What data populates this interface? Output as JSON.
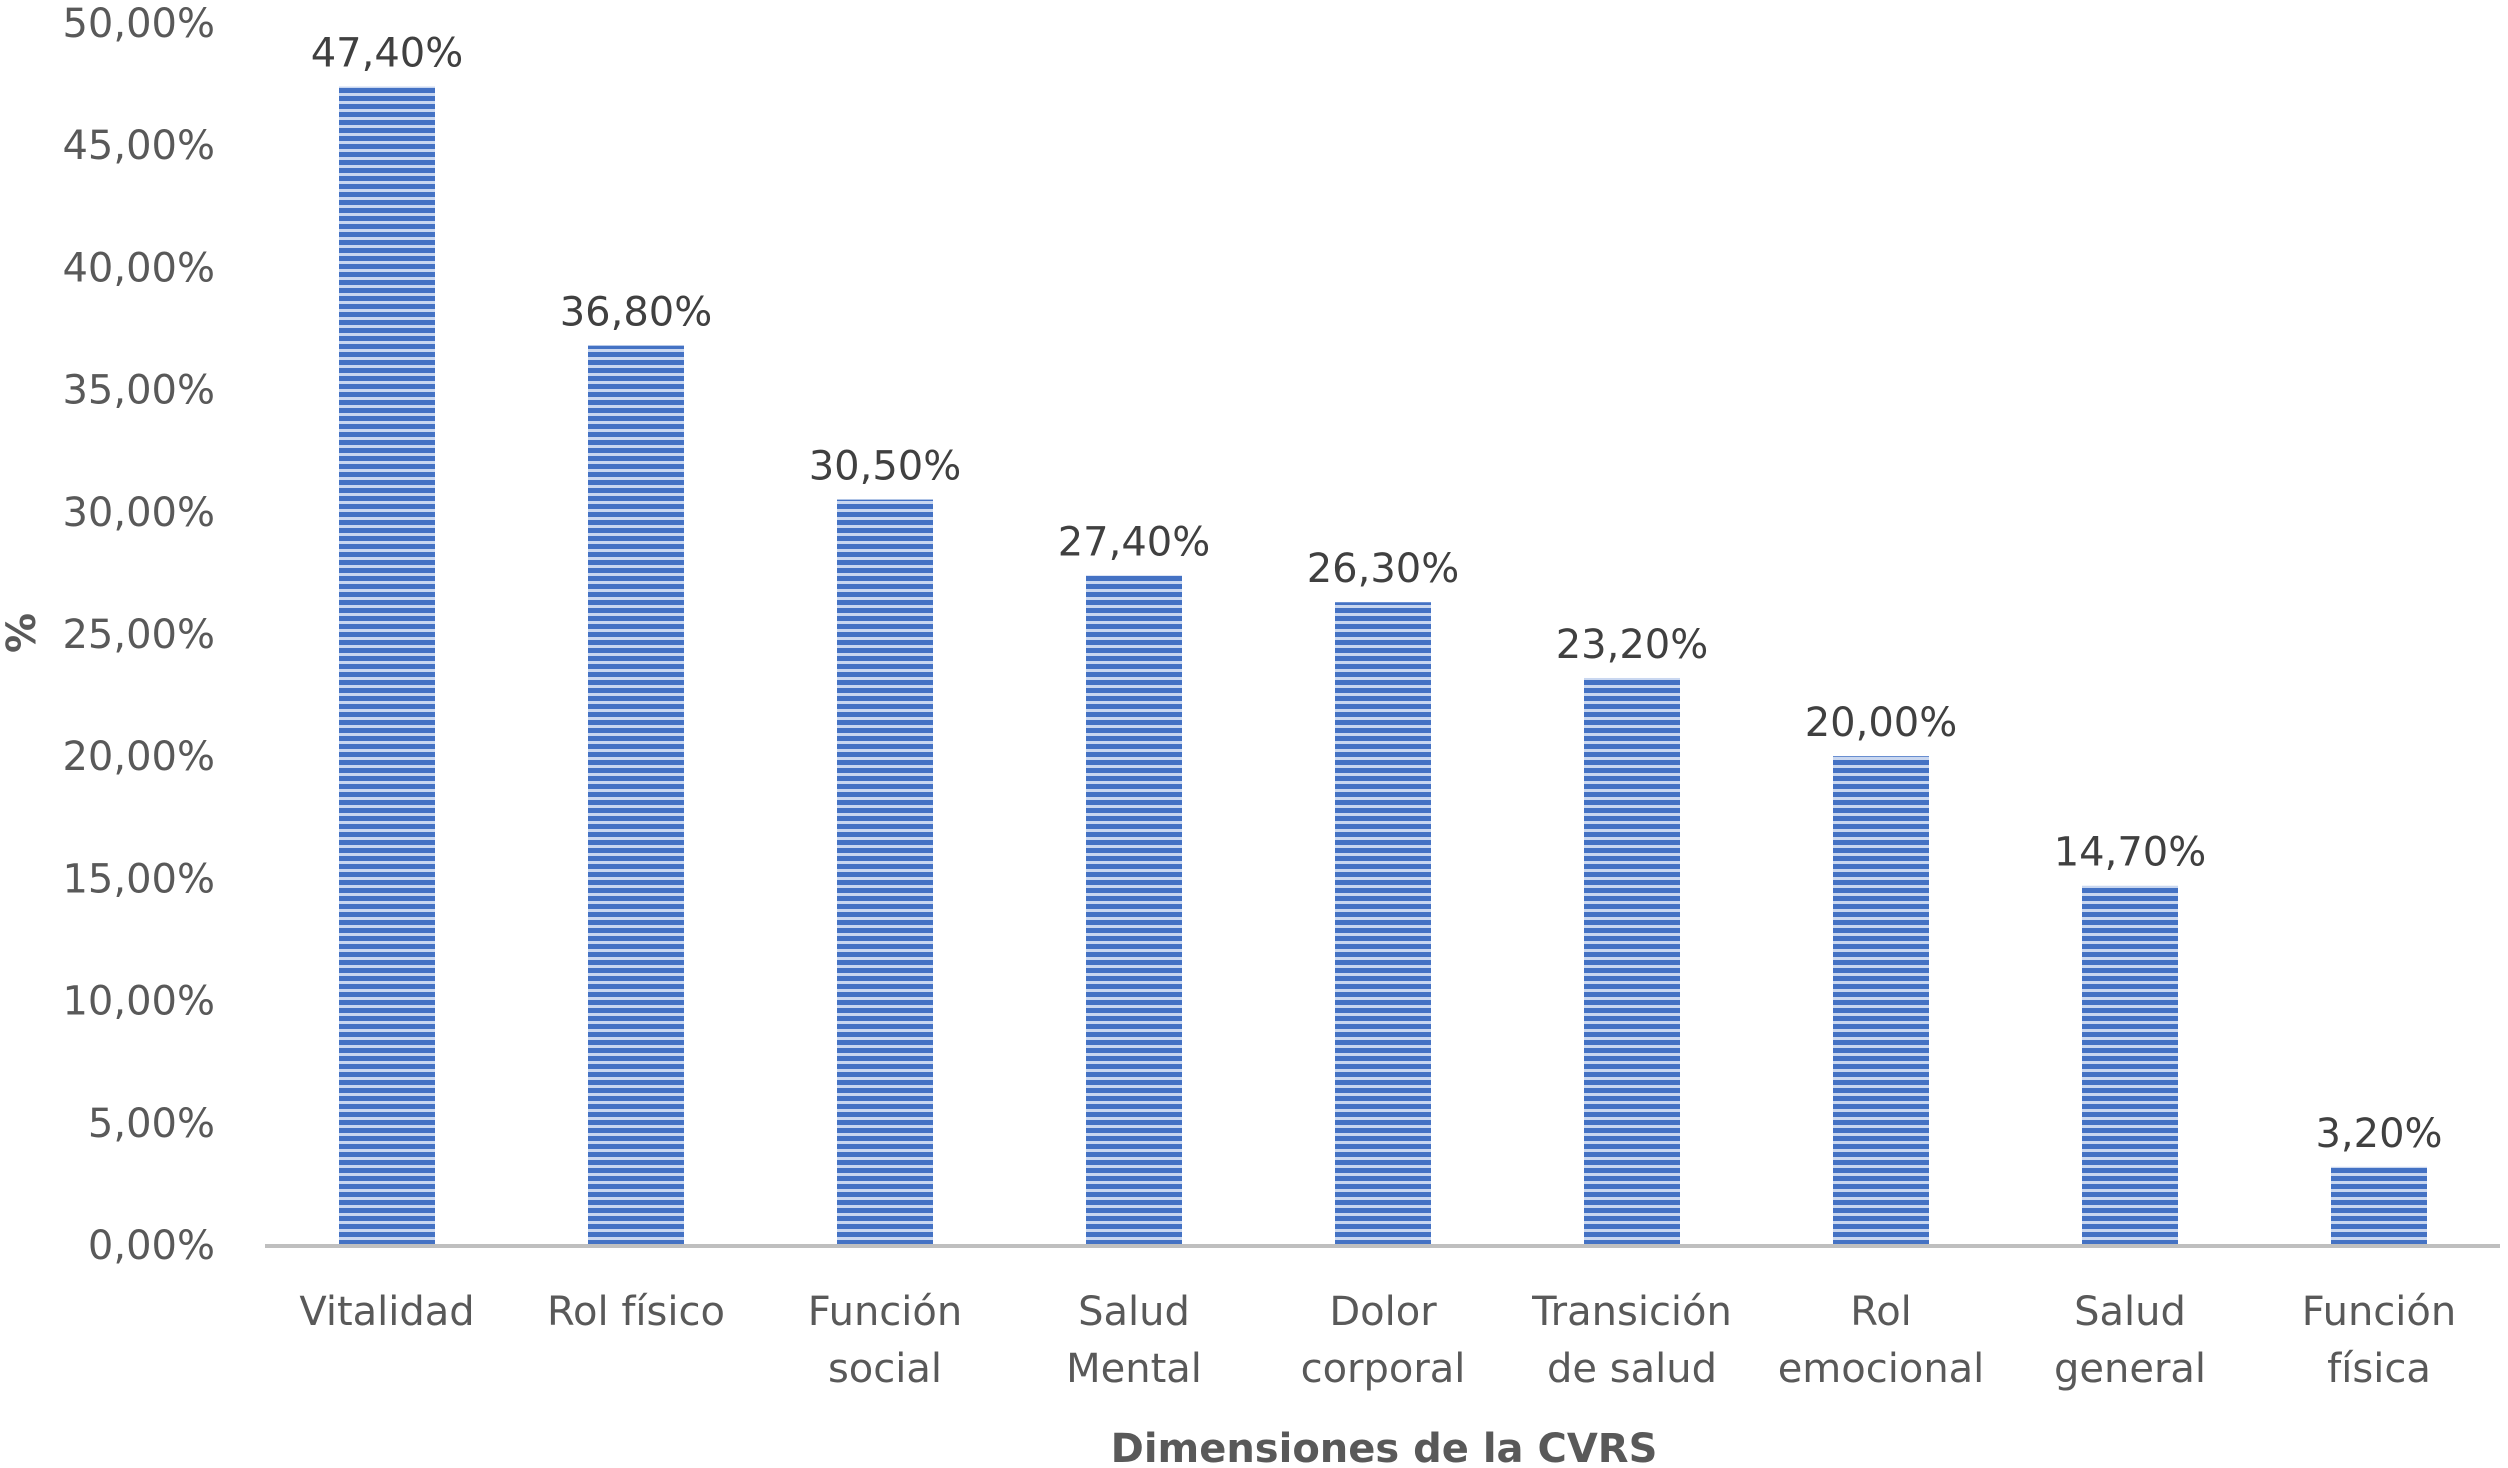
{
  "chart_data": {
    "type": "bar",
    "title": "",
    "xlabel": "Dimensiones de la CVRS",
    "ylabel": "%",
    "ylim": [
      0,
      50
    ],
    "y_ticks": [
      0,
      5,
      10,
      15,
      20,
      25,
      30,
      35,
      40,
      45,
      50
    ],
    "y_tick_labels": [
      "0,00%",
      "5,00%",
      "10,00%",
      "15,00%",
      "20,00%",
      "25,00%",
      "30,00%",
      "35,00%",
      "40,00%",
      "45,00%",
      "50,00%"
    ],
    "grid": false,
    "legend": "none",
    "categories": [
      [
        "Vitalidad"
      ],
      [
        "Rol físico"
      ],
      [
        "Función",
        "social"
      ],
      [
        "Salud",
        "Mental"
      ],
      [
        "Dolor",
        "corporal"
      ],
      [
        "Transición",
        "de salud"
      ],
      [
        "Rol",
        "emocional"
      ],
      [
        "Salud",
        "general"
      ],
      [
        "Función",
        "física"
      ]
    ],
    "values": [
      47.4,
      36.8,
      30.5,
      27.4,
      26.3,
      23.2,
      20.0,
      14.7,
      3.2
    ],
    "data_labels": [
      "47,40%",
      "36,80%",
      "30,50%",
      "27,40%",
      "26,30%",
      "23,20%",
      "20,00%",
      "14,70%",
      "3,20%"
    ],
    "colors": {
      "bar_fill": "#4472c4",
      "bar_stripe": "#c9d7f0",
      "axis": "#bfbfbf"
    }
  }
}
